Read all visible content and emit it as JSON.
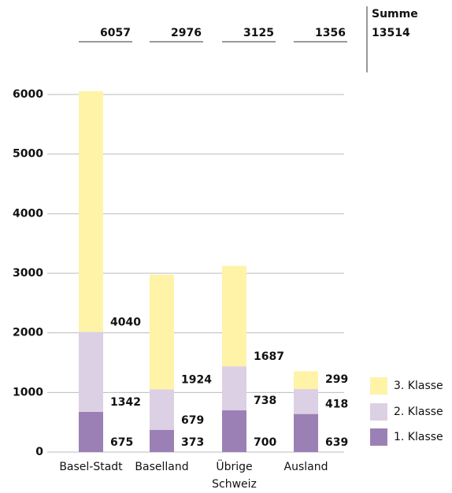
{
  "chart_data": {
    "type": "bar",
    "stacked": true,
    "categories": [
      "Basel-Stadt",
      "Baselland",
      "Übrige Schweiz",
      "Ausland"
    ],
    "series": [
      {
        "name": "1. Klasse",
        "color": "#9b80b5",
        "values": [
          675,
          373,
          700,
          639
        ]
      },
      {
        "name": "2. Klasse",
        "color": "#dcd0e4",
        "values": [
          1342,
          679,
          738,
          418
        ]
      },
      {
        "name": "3. Klasse",
        "color": "#fff3a8",
        "values": [
          4040,
          1924,
          1687,
          299
        ]
      }
    ],
    "totals": [
      6057,
      2976,
      3125,
      1356
    ],
    "sum_label": "Summe",
    "sum": 13514,
    "ylim": [
      0,
      6000
    ],
    "yticks": [
      0,
      1000,
      2000,
      3000,
      4000,
      5000,
      6000
    ],
    "grid": true
  }
}
